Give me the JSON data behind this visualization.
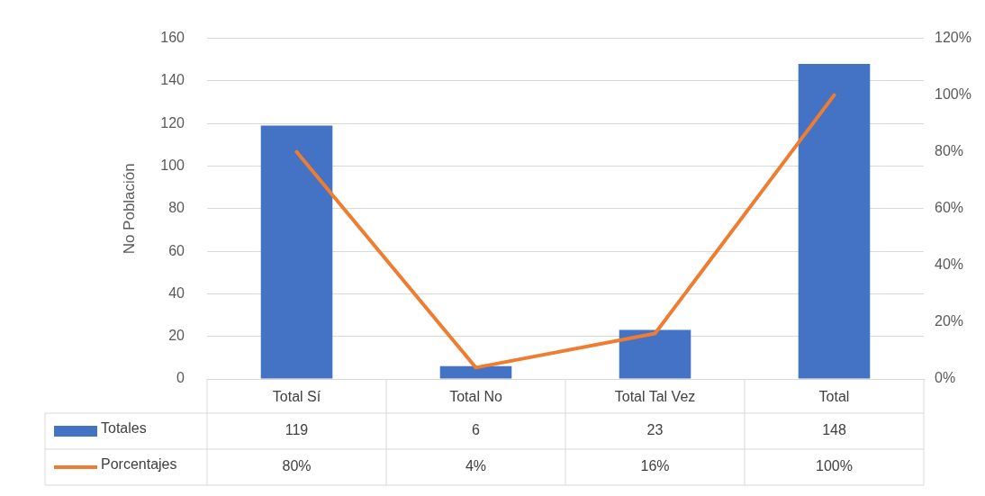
{
  "chart_data": {
    "type": "bar",
    "ylabel": "No Población",
    "categories": [
      "Total Sí",
      "Total No",
      "Total Tal Vez",
      "Total"
    ],
    "series": [
      {
        "name": "Totales",
        "color": "#4472c4",
        "values": [
          119,
          6,
          23,
          148
        ],
        "value_labels": [
          "119",
          "6",
          "23",
          "148"
        ]
      },
      {
        "name": "Porcentajes",
        "type": "line",
        "axis": "y2",
        "color": "#ed7d31",
        "values": [
          80,
          4,
          16,
          100
        ],
        "value_labels": [
          "80%",
          "4%",
          "16%",
          "100%"
        ]
      }
    ],
    "ylim": [
      0,
      160
    ],
    "yticks": [
      0,
      20,
      40,
      60,
      80,
      100,
      120,
      140,
      160
    ],
    "y2lim": [
      0,
      120
    ],
    "y2ticks": [
      {
        "value": 0,
        "label": "0%"
      },
      {
        "value": 20,
        "label": "20%"
      },
      {
        "value": 40,
        "label": "40%"
      },
      {
        "value": 60,
        "label": "60%"
      },
      {
        "value": 80,
        "label": "80%"
      },
      {
        "value": 100,
        "label": "100%"
      },
      {
        "value": 120,
        "label": "120%"
      }
    ],
    "grid": "y",
    "legend": "bottom",
    "marker": "none"
  }
}
